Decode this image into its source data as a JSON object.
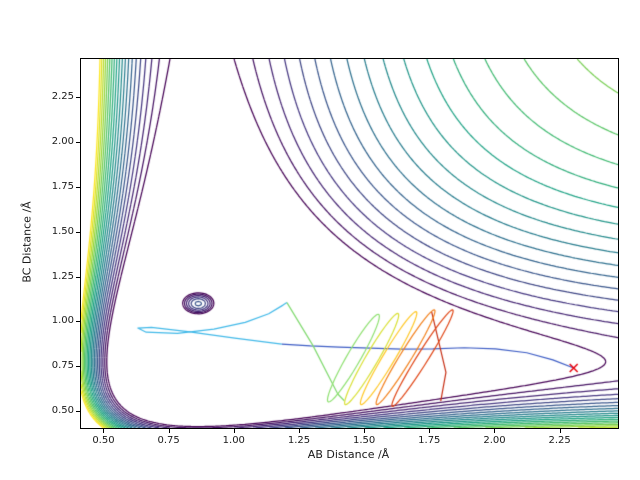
{
  "figure": {
    "background": "#ffffff"
  },
  "chart_data": {
    "type": "contour",
    "title": "",
    "xlabel": "AB Distance /Å",
    "ylabel": "BC Distance /Å",
    "xlim": [
      0.41,
      2.47
    ],
    "ylim": [
      0.41,
      2.47
    ],
    "grid": false,
    "x_ticks": {
      "values": [
        0.5,
        0.75,
        1.0,
        1.25,
        1.5,
        1.75,
        2.0,
        2.25
      ],
      "labels": [
        "0.50",
        "0.75",
        "1.00",
        "1.25",
        "1.50",
        "1.75",
        "2.00",
        "2.25"
      ]
    },
    "y_ticks": {
      "values": [
        0.5,
        0.75,
        1.0,
        1.25,
        1.5,
        1.75,
        2.0,
        2.25
      ],
      "labels": [
        "0.50",
        "0.75",
        "1.00",
        "1.25",
        "1.50",
        "1.75",
        "2.00",
        "2.25"
      ]
    },
    "contours": {
      "colormap": "viridis",
      "colormap_anchors": [
        "#440154",
        "#46327e",
        "#365c8d",
        "#277f8e",
        "#1fa187",
        "#4ac16d",
        "#a0da39",
        "#fde725"
      ],
      "levels": [
        0.9,
        0.955,
        1.01,
        1.065,
        1.12,
        1.175,
        1.23,
        1.285,
        1.34,
        1.395,
        1.45,
        1.505,
        1.56,
        1.615,
        1.67,
        1.725,
        1.78,
        1.835,
        1.89,
        1.945
      ],
      "line_width": 1.25,
      "surface_model": {
        "description": "potential energy surface: V = wx*(1-exp(-a*(x-rex)))^2 + wy*(1-exp(-a*(y-rey)))^2 + bh*exp(-((x-bx)^2+(y-by)^2)/(2*bs^2))",
        "wx": 1.0,
        "wy": 0.92,
        "a": 1.9,
        "rex": 0.86,
        "rey": 0.78,
        "bx": 0.86,
        "by": 1.1,
        "bh": 1.0,
        "bs": 0.07
      }
    },
    "trajectory": {
      "segments": [
        {
          "color": "#3b5bc4",
          "points": [
            [
              2.3,
              0.745
            ],
            [
              2.22,
              0.79
            ],
            [
              2.12,
              0.83
            ],
            [
              2.0,
              0.852
            ],
            [
              1.88,
              0.858
            ],
            [
              1.76,
              0.852
            ],
            [
              1.64,
              0.85
            ],
            [
              1.52,
              0.856
            ],
            [
              1.4,
              0.862
            ],
            [
              1.29,
              0.868
            ],
            [
              1.18,
              0.878
            ]
          ]
        },
        {
          "color": "#3fb8e8",
          "points": [
            [
              1.18,
              0.878
            ],
            [
              1.0,
              0.912
            ],
            [
              0.82,
              0.948
            ],
            [
              0.68,
              0.972
            ],
            [
              0.628,
              0.968
            ],
            [
              0.66,
              0.945
            ],
            [
              0.78,
              0.938
            ],
            [
              0.92,
              0.962
            ],
            [
              1.04,
              1.0
            ],
            [
              1.13,
              1.048
            ],
            [
              1.185,
              1.096
            ],
            [
              1.2,
              1.11
            ]
          ]
        },
        {
          "color": "#7fd96e",
          "points": [
            [
              1.2,
              1.11
            ],
            [
              1.3,
              0.87
            ],
            [
              1.395,
              0.6
            ],
            [
              1.42,
              0.562
            ]
          ]
        },
        {
          "color": "#c62d12",
          "points": [
            [
              1.755,
              1.06
            ],
            [
              1.81,
              0.72
            ],
            [
              1.79,
              0.56
            ]
          ]
        }
      ],
      "loops": [
        {
          "cx": 1.455,
          "cy": 0.8,
          "rx": 0.03,
          "ry": 0.245,
          "shear": 0.095,
          "color": "#8ee070"
        },
        {
          "cx": 1.525,
          "cy": 0.795,
          "rx": 0.028,
          "ry": 0.255,
          "shear": 0.1,
          "color": "#d9e035"
        },
        {
          "cx": 1.59,
          "cy": 0.8,
          "rx": 0.027,
          "ry": 0.26,
          "shear": 0.105,
          "color": "#ffc725"
        },
        {
          "cx": 1.655,
          "cy": 0.805,
          "rx": 0.026,
          "ry": 0.265,
          "shear": 0.11,
          "color": "#f2801c"
        },
        {
          "cx": 1.72,
          "cy": 0.8,
          "rx": 0.025,
          "ry": 0.27,
          "shear": 0.115,
          "color": "#e04616"
        }
      ],
      "marker": {
        "x": 2.3,
        "y": 0.745,
        "symbol": "x",
        "color": "#e8000b",
        "size": 4
      }
    }
  }
}
